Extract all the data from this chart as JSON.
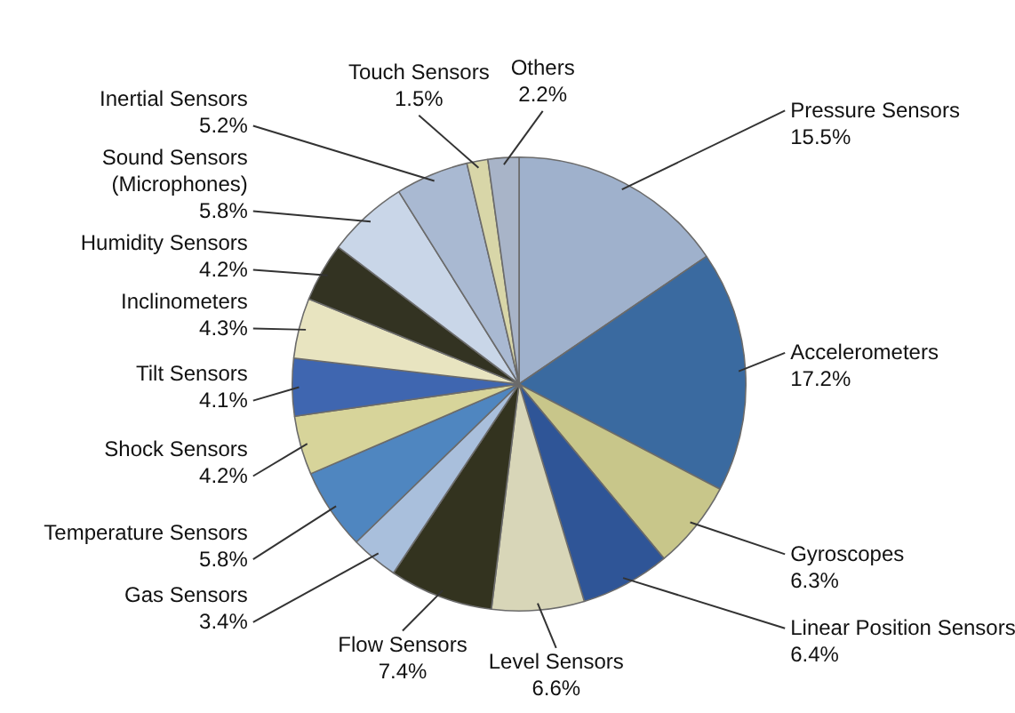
{
  "chart_data": {
    "type": "pie",
    "categories": [
      "Pressure Sensors",
      "Accelerometers",
      "Gyroscopes",
      "Linear Position Sensors",
      "Level Sensors",
      "Flow Sensors",
      "Gas Sensors",
      "Temperature Sensors",
      "Shock Sensors",
      "Tilt Sensors",
      "Inclinometers",
      "Humidity Sensors",
      "Sound Sensors\n(Microphones)",
      "Inertial Sensors",
      "Touch Sensors",
      "Others"
    ],
    "values": [
      15.5,
      17.2,
      6.3,
      6.4,
      6.6,
      7.4,
      3.4,
      5.8,
      4.2,
      4.1,
      4.3,
      4.2,
      5.8,
      5.2,
      1.5,
      2.2
    ],
    "value_labels": [
      "15.5%",
      "17.2%",
      "6.3%",
      "6.4%",
      "6.6%",
      "7.4%",
      "3.4%",
      "5.8%",
      "4.2%",
      "4.1%",
      "4.3%",
      "4.2%",
      "5.8%",
      "5.2%",
      "1.5%",
      "2.2%"
    ],
    "colors": [
      "#9fb1cc",
      "#3a6aa0",
      "#c8c68a",
      "#2f5597",
      "#d8d6b8",
      "#33331f",
      "#a9bfdc",
      "#4f86c0",
      "#d7d49a",
      "#3f66b0",
      "#e8e4c0",
      "#333322",
      "#c9d6e8",
      "#a9b9d2",
      "#d8d6a8",
      "#a8b4c8"
    ]
  }
}
